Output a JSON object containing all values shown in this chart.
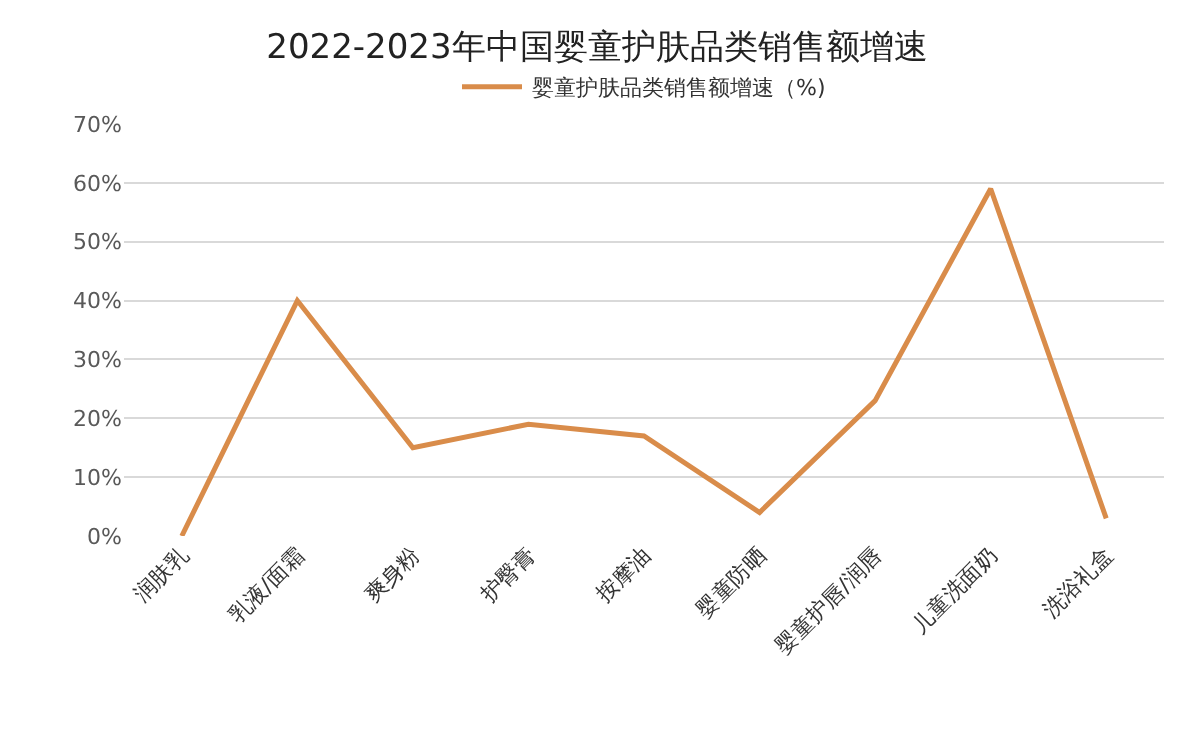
{
  "chart_data": {
    "type": "line",
    "title": "2022-2023年中国婴童护肤品类销售额增速",
    "categories": [
      "润肤乳",
      "乳液/面霜",
      "爽身粉",
      "护臀膏",
      "按摩油",
      "婴童防晒",
      "婴童护唇/润唇",
      "儿童洗面奶",
      "洗浴礼盒"
    ],
    "series": [
      {
        "name": "婴童护肤品类销售额增速（%)",
        "color": "#d98c4a",
        "values": [
          0,
          40,
          15,
          19,
          17,
          4,
          23,
          59,
          3
        ]
      }
    ],
    "ylim": [
      0,
      70
    ],
    "yticks": [
      {
        "value": 0,
        "label": "0%"
      },
      {
        "value": 10,
        "label": "10%"
      },
      {
        "value": 20,
        "label": "20%"
      },
      {
        "value": 30,
        "label": "30%"
      },
      {
        "value": 40,
        "label": "40%"
      },
      {
        "value": 50,
        "label": "50%"
      },
      {
        "value": 60,
        "label": "60%"
      },
      {
        "value": 70,
        "label": "70%"
      }
    ],
    "grid": "y",
    "legend": "top",
    "marker": "none",
    "line_style": "solid"
  }
}
